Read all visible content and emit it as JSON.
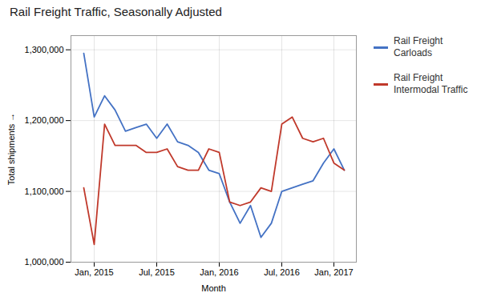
{
  "chart_data": {
    "type": "line",
    "title": "Rail Freight Traffic, Seasonally Adjusted",
    "xlabel": "Month",
    "ylabel": "Total shipments",
    "categories": [
      null,
      "Jan, 2015",
      null,
      null,
      null,
      null,
      null,
      "Jul, 2015",
      null,
      null,
      null,
      null,
      null,
      "Jan, 2016",
      null,
      null,
      null,
      null,
      null,
      "Jul, 2016",
      null,
      null,
      null,
      null,
      "Jan, 2017",
      null
    ],
    "series": [
      {
        "name": "Rail Freight\nCarloads",
        "color": "#4472C4",
        "values": [
          1295000,
          1205000,
          1235000,
          1215000,
          1185000,
          1190000,
          1195000,
          1175000,
          1195000,
          1170000,
          1165000,
          1155000,
          1130000,
          1125000,
          1085000,
          1055000,
          1080000,
          1035000,
          1055000,
          1100000,
          1105000,
          1110000,
          1115000,
          1140000,
          1160000,
          1130000
        ]
      },
      {
        "name": "Rail Freight\nIntermodal Traffic",
        "color": "#C0392B",
        "values": [
          1105000,
          1025000,
          1195000,
          1165000,
          1165000,
          1165000,
          1155000,
          1155000,
          1160000,
          1135000,
          1130000,
          1130000,
          1160000,
          1155000,
          1085000,
          1080000,
          1085000,
          1105000,
          1100000,
          1195000,
          1205000,
          1175000,
          1170000,
          1175000,
          1140000,
          1130000
        ]
      }
    ],
    "ylim": [
      1000000,
      1320000
    ],
    "yticks": [
      {
        "value": 1000000,
        "label": "1,000,000"
      },
      {
        "value": 1100000,
        "label": "1,100,000"
      },
      {
        "value": 1200000,
        "label": "1,200,000"
      },
      {
        "value": 1300000,
        "label": "1,300,000"
      }
    ],
    "grid": true,
    "legend": "right"
  }
}
